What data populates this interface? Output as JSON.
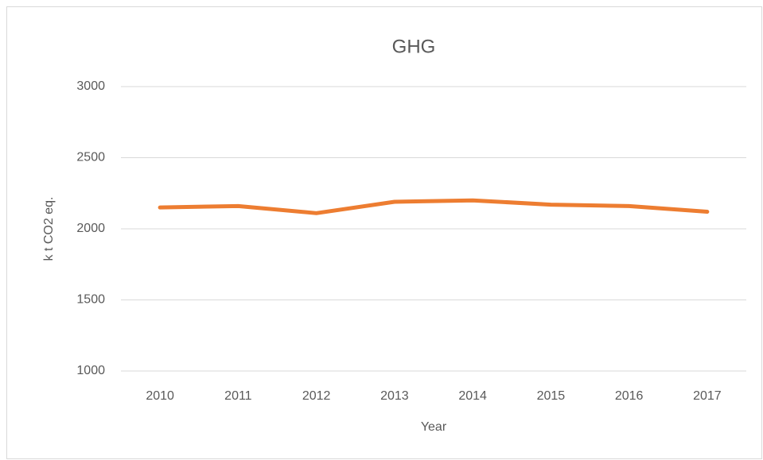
{
  "chart_data": {
    "type": "line",
    "title": "GHG",
    "x_label": "Year",
    "y_label": "k t CO2 eq.",
    "categories": [
      "2010",
      "2011",
      "2012",
      "2013",
      "2014",
      "2015",
      "2016",
      "2017"
    ],
    "series": [
      {
        "name": "GHG",
        "color": "#ED7D31",
        "values": [
          2150,
          2160,
          2110,
          2190,
          2200,
          2170,
          2160,
          2120
        ]
      }
    ],
    "ylim": [
      1000,
      3000
    ],
    "yticks": [
      1000,
      1500,
      2000,
      2500,
      3000
    ],
    "grid": true
  }
}
